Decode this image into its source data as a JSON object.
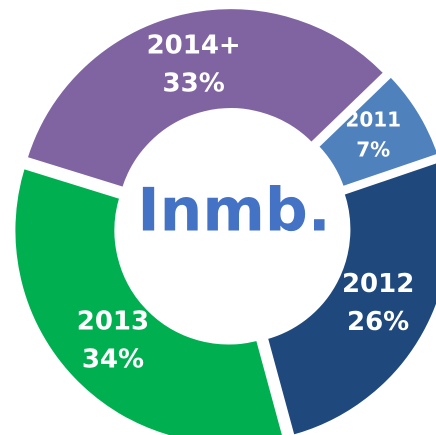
{
  "chart_data": {
    "type": "donut",
    "center_label": "Inmb.",
    "categories": [
      "2011",
      "2012",
      "2013",
      "2014+"
    ],
    "values": [
      7,
      26,
      34,
      33
    ],
    "value_labels": [
      "7%",
      "26%",
      "34%",
      "33%"
    ],
    "colors": [
      "#4f81bd",
      "#1f497d",
      "#00b050",
      "#8064a2"
    ]
  }
}
